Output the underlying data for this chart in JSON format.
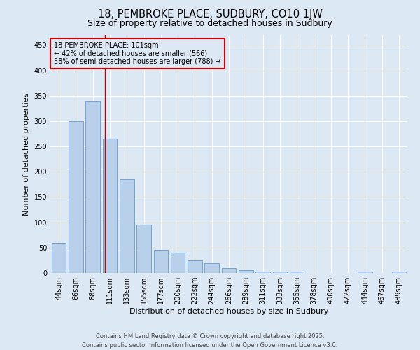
{
  "title": "18, PEMBROKE PLACE, SUDBURY, CO10 1JW",
  "subtitle": "Size of property relative to detached houses in Sudbury",
  "xlabel": "Distribution of detached houses by size in Sudbury",
  "ylabel": "Number of detached properties",
  "footer_line1": "Contains HM Land Registry data © Crown copyright and database right 2025.",
  "footer_line2": "Contains public sector information licensed under the Open Government Licence v3.0.",
  "bar_labels": [
    "44sqm",
    "66sqm",
    "88sqm",
    "111sqm",
    "133sqm",
    "155sqm",
    "177sqm",
    "200sqm",
    "222sqm",
    "244sqm",
    "266sqm",
    "289sqm",
    "311sqm",
    "333sqm",
    "355sqm",
    "378sqm",
    "400sqm",
    "422sqm",
    "444sqm",
    "467sqm",
    "489sqm"
  ],
  "bar_values": [
    60,
    300,
    340,
    265,
    185,
    95,
    45,
    40,
    25,
    20,
    10,
    5,
    3,
    3,
    3,
    0,
    0,
    0,
    3,
    0,
    3
  ],
  "bar_color": "#b8d0ea",
  "bar_edge_color": "#6699cc",
  "bg_color": "#dde8f5",
  "grid_color": "#ffffff",
  "annotation_box_text": "18 PEMBROKE PLACE: 101sqm\n← 42% of detached houses are smaller (566)\n58% of semi-detached houses are larger (788) →",
  "annotation_box_color": "#cc0000",
  "vline_x_index": 2.73,
  "ylim": [
    0,
    470
  ],
  "yticks": [
    0,
    50,
    100,
    150,
    200,
    250,
    300,
    350,
    400,
    450
  ],
  "title_fontsize": 10.5,
  "subtitle_fontsize": 9,
  "axis_label_fontsize": 8,
  "tick_fontsize": 7,
  "annotation_fontsize": 7,
  "footer_fontsize": 6
}
